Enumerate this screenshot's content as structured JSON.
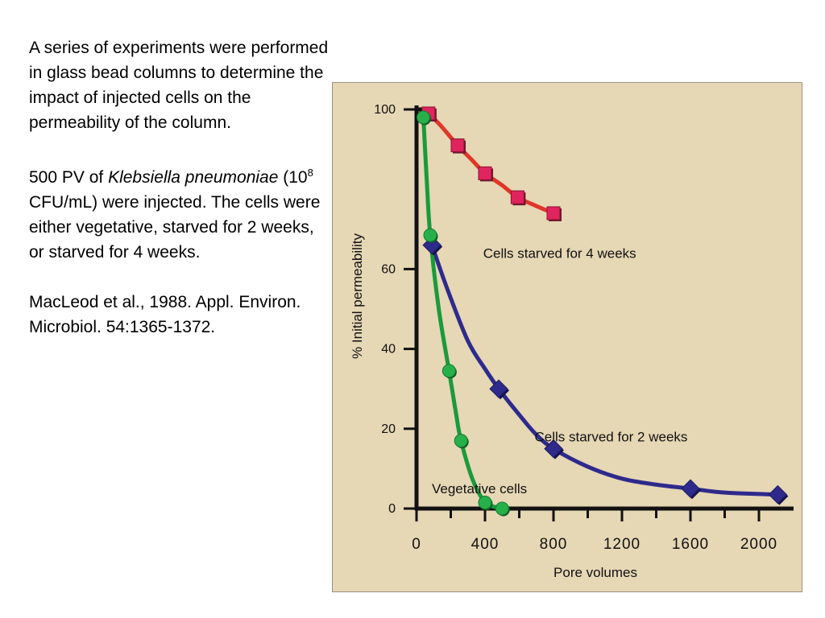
{
  "slide": {
    "para1": "A series of experiments were performed in glass bead columns to determine the impact of injected cells on the permeability of the column.",
    "para2": {
      "before": "500 PV of ",
      "species": "Klebsiella pneumoniae",
      "conc_open": " (10",
      "exponent": "8",
      "after": " CFU/mL) were injected.  The cells were either vegetative, starved for 2 weeks, or starved for 4 weeks."
    },
    "para3": "MacLeod et al., 1988. Appl. Environ. Microbiol.  54:1365-1372."
  },
  "chart_data": {
    "type": "line",
    "title": "",
    "xlabel": "Pore volumes",
    "ylabel": "% Initial permeability",
    "xlim": [
      0,
      2100
    ],
    "ylim": [
      0,
      100
    ],
    "x_ticks": [
      0,
      400,
      800,
      1200,
      1600,
      2000
    ],
    "x_tick_labels": [
      "0",
      "400",
      "800",
      "1200",
      "1600",
      "2000"
    ],
    "y_ticks": [
      0,
      20,
      40,
      60,
      100
    ],
    "y_tick_labels": [
      "0",
      "20",
      "40",
      "60",
      "100"
    ],
    "grid": false,
    "legend": "none",
    "series": [
      {
        "name": "Cells starved for 4 weeks",
        "color": "#e0362a",
        "marker": "square",
        "marker_color": "#e0245e",
        "x": [
          70,
          240,
          400,
          590,
          800
        ],
        "y": [
          99,
          91,
          84,
          78,
          74
        ],
        "curve": [
          [
            70,
            99
          ],
          [
            140,
            96
          ],
          [
            240,
            91
          ],
          [
            320,
            87.5
          ],
          [
            400,
            84
          ],
          [
            500,
            81
          ],
          [
            590,
            78
          ],
          [
            700,
            75.8
          ],
          [
            800,
            74
          ]
        ]
      },
      {
        "name": "Cells starved for 2 weeks",
        "color": "#2e2a8c",
        "marker": "diamond",
        "marker_color": "#2e2a8c",
        "x": [
          90,
          480,
          800,
          1600,
          2110
        ],
        "y": [
          66,
          30,
          15,
          5,
          3.5
        ],
        "curve": [
          [
            90,
            66
          ],
          [
            180,
            55
          ],
          [
            300,
            42
          ],
          [
            400,
            35
          ],
          [
            480,
            30
          ],
          [
            600,
            23.5
          ],
          [
            700,
            18.5
          ],
          [
            800,
            15
          ],
          [
            1000,
            10.5
          ],
          [
            1200,
            7.5
          ],
          [
            1400,
            6
          ],
          [
            1600,
            5
          ],
          [
            1800,
            4
          ],
          [
            2110,
            3.5
          ]
        ]
      },
      {
        "name": "Vegetative cells",
        "color": "#1a9a3c",
        "marker": "circle",
        "marker_color": "#27b04a",
        "x": [
          40,
          80,
          190,
          260,
          400,
          500
        ],
        "y": [
          98,
          68.5,
          34.5,
          17,
          1.5,
          0
        ],
        "curve": [
          [
            40,
            98
          ],
          [
            60,
            82
          ],
          [
            80,
            68.5
          ],
          [
            130,
            50
          ],
          [
            190,
            34.5
          ],
          [
            230,
            24
          ],
          [
            260,
            17
          ],
          [
            330,
            7
          ],
          [
            400,
            1.5
          ],
          [
            450,
            0.5
          ],
          [
            500,
            0
          ]
        ]
      }
    ],
    "annotations": [
      {
        "text": "Cells starved for 4 weeks",
        "x": 700,
        "y": 64
      },
      {
        "text": "Cells starved for 2 weeks",
        "x": 1000,
        "y": 18
      },
      {
        "text": "Vegetative cells",
        "x": 400,
        "y": 5
      }
    ]
  }
}
